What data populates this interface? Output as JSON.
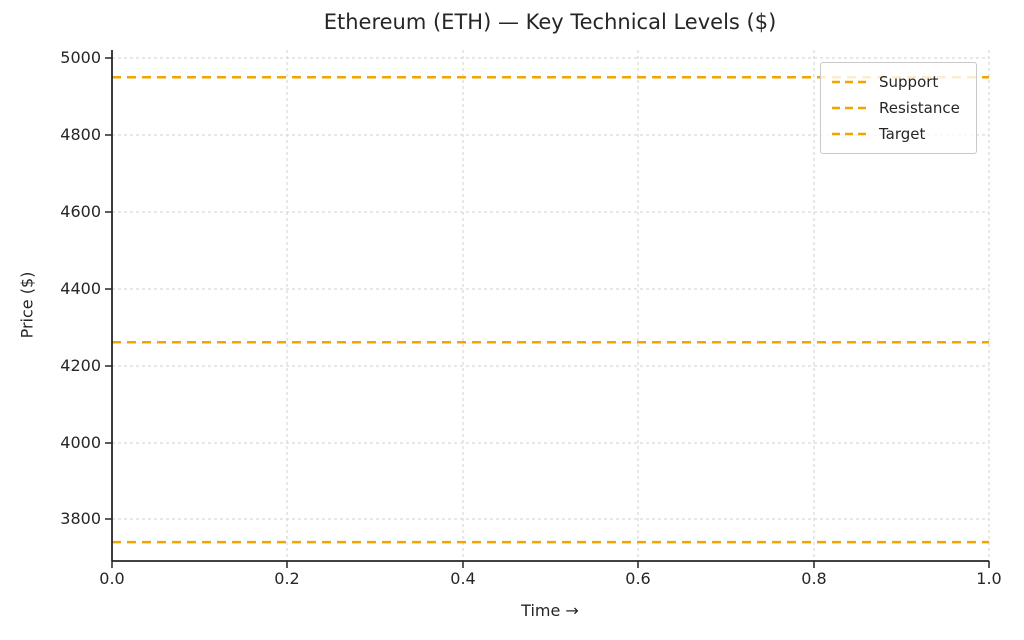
{
  "chart_data": {
    "type": "line",
    "title": "Ethereum (ETH) — Key Technical Levels ($)",
    "xlabel": "Time →",
    "ylabel": "Price ($)",
    "xlim": [
      0.0,
      1.0
    ],
    "ylim": [
      3690,
      5025
    ],
    "x_ticks": [
      "0.0",
      "0.2",
      "0.4",
      "0.6",
      "0.8",
      "1.0"
    ],
    "y_ticks": [
      "5000",
      "4800",
      "4600",
      "4400",
      "4200",
      "4000",
      "3800"
    ],
    "grid": true,
    "grid_style": "dashed",
    "legend_position": "upper right",
    "series": [
      {
        "name": "Support",
        "type": "hline",
        "value": 3740,
        "color": "#F0A500",
        "style": "dashed"
      },
      {
        "name": "Resistance",
        "type": "hline",
        "value": 4260,
        "color": "#F0A500",
        "style": "dashed"
      },
      {
        "name": "Target",
        "type": "hline",
        "value": 4950,
        "color": "#F0A500",
        "style": "dashed"
      }
    ]
  }
}
